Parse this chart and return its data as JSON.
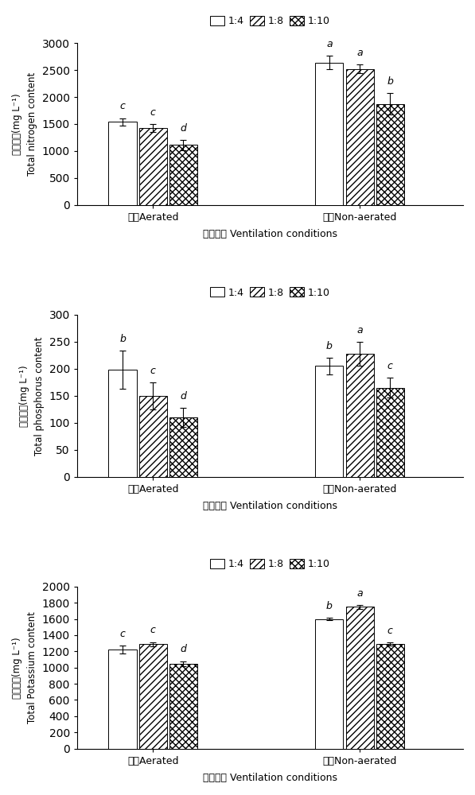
{
  "charts": [
    {
      "ylabel_cn": "全氮含量(mg L⁻¹)",
      "ylabel_en": "Total nitrogen content",
      "ylim": [
        0,
        3000
      ],
      "yticks": [
        0,
        500,
        1000,
        1500,
        2000,
        2500,
        3000
      ],
      "xtick_labels": [
        "好氧Aerated",
        "厜氧Non-aerated"
      ],
      "bars": {
        "1:4": [
          1540,
          2640
        ],
        "1:8": [
          1430,
          2520
        ],
        "1:10": [
          1110,
          1870
        ]
      },
      "errors": {
        "1:4": [
          70,
          120
        ],
        "1:8": [
          70,
          80
        ],
        "1:10": [
          100,
          200
        ]
      },
      "letters": {
        "aerated": [
          "c",
          "c",
          "d"
        ],
        "non_aerated": [
          "a",
          "a",
          "b"
        ]
      }
    },
    {
      "ylabel_cn": "全磷含量(mg L⁻¹)",
      "ylabel_en": "Total phosphorus content",
      "ylim": [
        0,
        300
      ],
      "yticks": [
        0,
        50,
        100,
        150,
        200,
        250,
        300
      ],
      "xtick_labels": [
        "好氧Aerated",
        "厜氧Non-aerated"
      ],
      "bars": {
        "1:4": [
          198,
          205
        ],
        "1:8": [
          150,
          228
        ],
        "1:10": [
          110,
          165
        ]
      },
      "errors": {
        "1:4": [
          35,
          15
        ],
        "1:8": [
          25,
          22
        ],
        "1:10": [
          18,
          18
        ]
      },
      "letters": {
        "aerated": [
          "b",
          "c",
          "d"
        ],
        "non_aerated": [
          "b",
          "a",
          "c"
        ]
      }
    },
    {
      "ylabel_cn": "全钔含量(mg L⁻¹)",
      "ylabel_en": "Total Potassium content",
      "ylim": [
        0,
        2000
      ],
      "yticks": [
        0,
        200,
        400,
        600,
        800,
        1000,
        1200,
        1400,
        1600,
        1800,
        2000
      ],
      "xtick_labels": [
        "好氧Aerated",
        "厜氧Non-aerated"
      ],
      "bars": {
        "1:4": [
          1220,
          1600
        ],
        "1:8": [
          1290,
          1750
        ],
        "1:10": [
          1050,
          1290
        ]
      },
      "errors": {
        "1:4": [
          50,
          15
        ],
        "1:8": [
          25,
          25
        ],
        "1:10": [
          30,
          20
        ]
      },
      "letters": {
        "aerated": [
          "c",
          "c",
          "d"
        ],
        "non_aerated": [
          "b",
          "a",
          "c"
        ]
      }
    }
  ],
  "legend_labels": [
    "1:4",
    "1:8",
    "1:10"
  ],
  "xlabel": "通气条件 Ventilation conditions",
  "bar_width": 0.22,
  "group_positions": [
    1.0,
    2.5
  ],
  "hatch_patterns": [
    "",
    "////",
    "xxxx"
  ]
}
